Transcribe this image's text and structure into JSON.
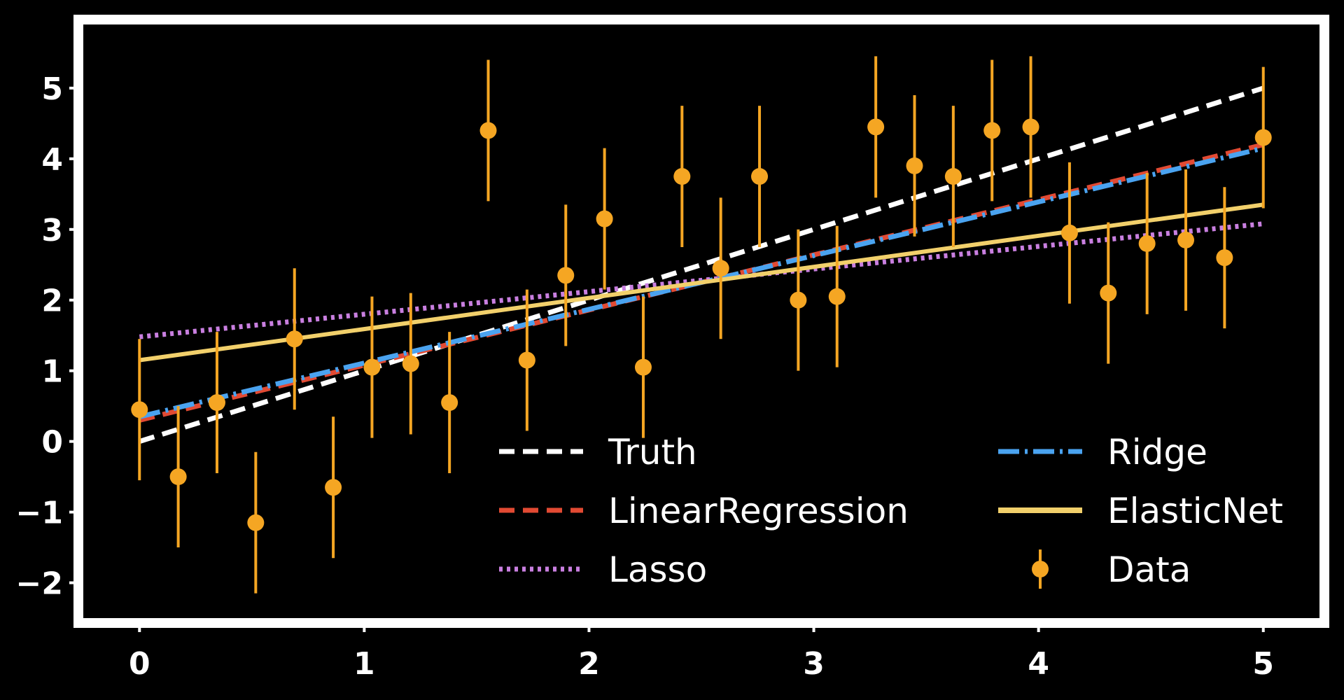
{
  "chart_data": {
    "type": "scatter",
    "title": "",
    "xlabel": "",
    "ylabel": "",
    "xlim": [
      -0.25,
      5.25
    ],
    "ylim": [
      -2.5,
      5.9
    ],
    "xticks": [
      0,
      1,
      2,
      3,
      4,
      5
    ],
    "yticks": [
      -2,
      -1,
      0,
      1,
      2,
      3,
      4,
      5
    ],
    "grid": false,
    "legend_position": "lower-right",
    "data_series": {
      "name": "Data",
      "color": "#f5a623",
      "error": 1.0,
      "x": [
        0.0,
        0.1724,
        0.3448,
        0.5172,
        0.6897,
        0.8621,
        1.0345,
        1.2069,
        1.3793,
        1.5517,
        1.7241,
        1.8966,
        2.069,
        2.2414,
        2.4138,
        2.5862,
        2.7586,
        2.931,
        3.1034,
        3.2759,
        3.4483,
        3.6207,
        3.7931,
        3.9655,
        4.1379,
        4.3103,
        4.4828,
        4.6552,
        4.8276,
        5.0
      ],
      "y": [
        0.45,
        -0.5,
        0.55,
        -1.15,
        1.45,
        -0.65,
        1.05,
        1.1,
        0.55,
        4.4,
        1.15,
        2.35,
        3.15,
        1.05,
        3.75,
        2.45,
        3.75,
        2.0,
        2.05,
        4.45,
        3.9,
        3.75,
        4.4,
        4.45,
        2.95,
        2.1,
        2.8,
        2.85,
        2.6,
        4.3
      ]
    },
    "series": [
      {
        "name": "Truth",
        "color": "#ffffff",
        "style": "dashed",
        "x": [
          0,
          5
        ],
        "y": [
          0.0,
          5.0
        ]
      },
      {
        "name": "LinearRegression",
        "color": "#e24a33",
        "style": "dashed",
        "x": [
          0,
          5
        ],
        "y": [
          0.3,
          4.2
        ]
      },
      {
        "name": "Lasso",
        "color": "#c97fe0",
        "style": "dotted",
        "x": [
          0,
          5
        ],
        "y": [
          1.48,
          3.08
        ]
      },
      {
        "name": "Ridge",
        "color": "#4aa3f0",
        "style": "dashdot",
        "x": [
          0,
          5
        ],
        "y": [
          0.35,
          4.15
        ]
      },
      {
        "name": "ElasticNet",
        "color": "#f2d06b",
        "style": "solid",
        "x": [
          0,
          5
        ],
        "y": [
          1.15,
          3.35
        ]
      }
    ],
    "legend_entries": [
      "Truth",
      "Ridge",
      "LinearRegression",
      "ElasticNet",
      "Lasso",
      "Data"
    ]
  }
}
